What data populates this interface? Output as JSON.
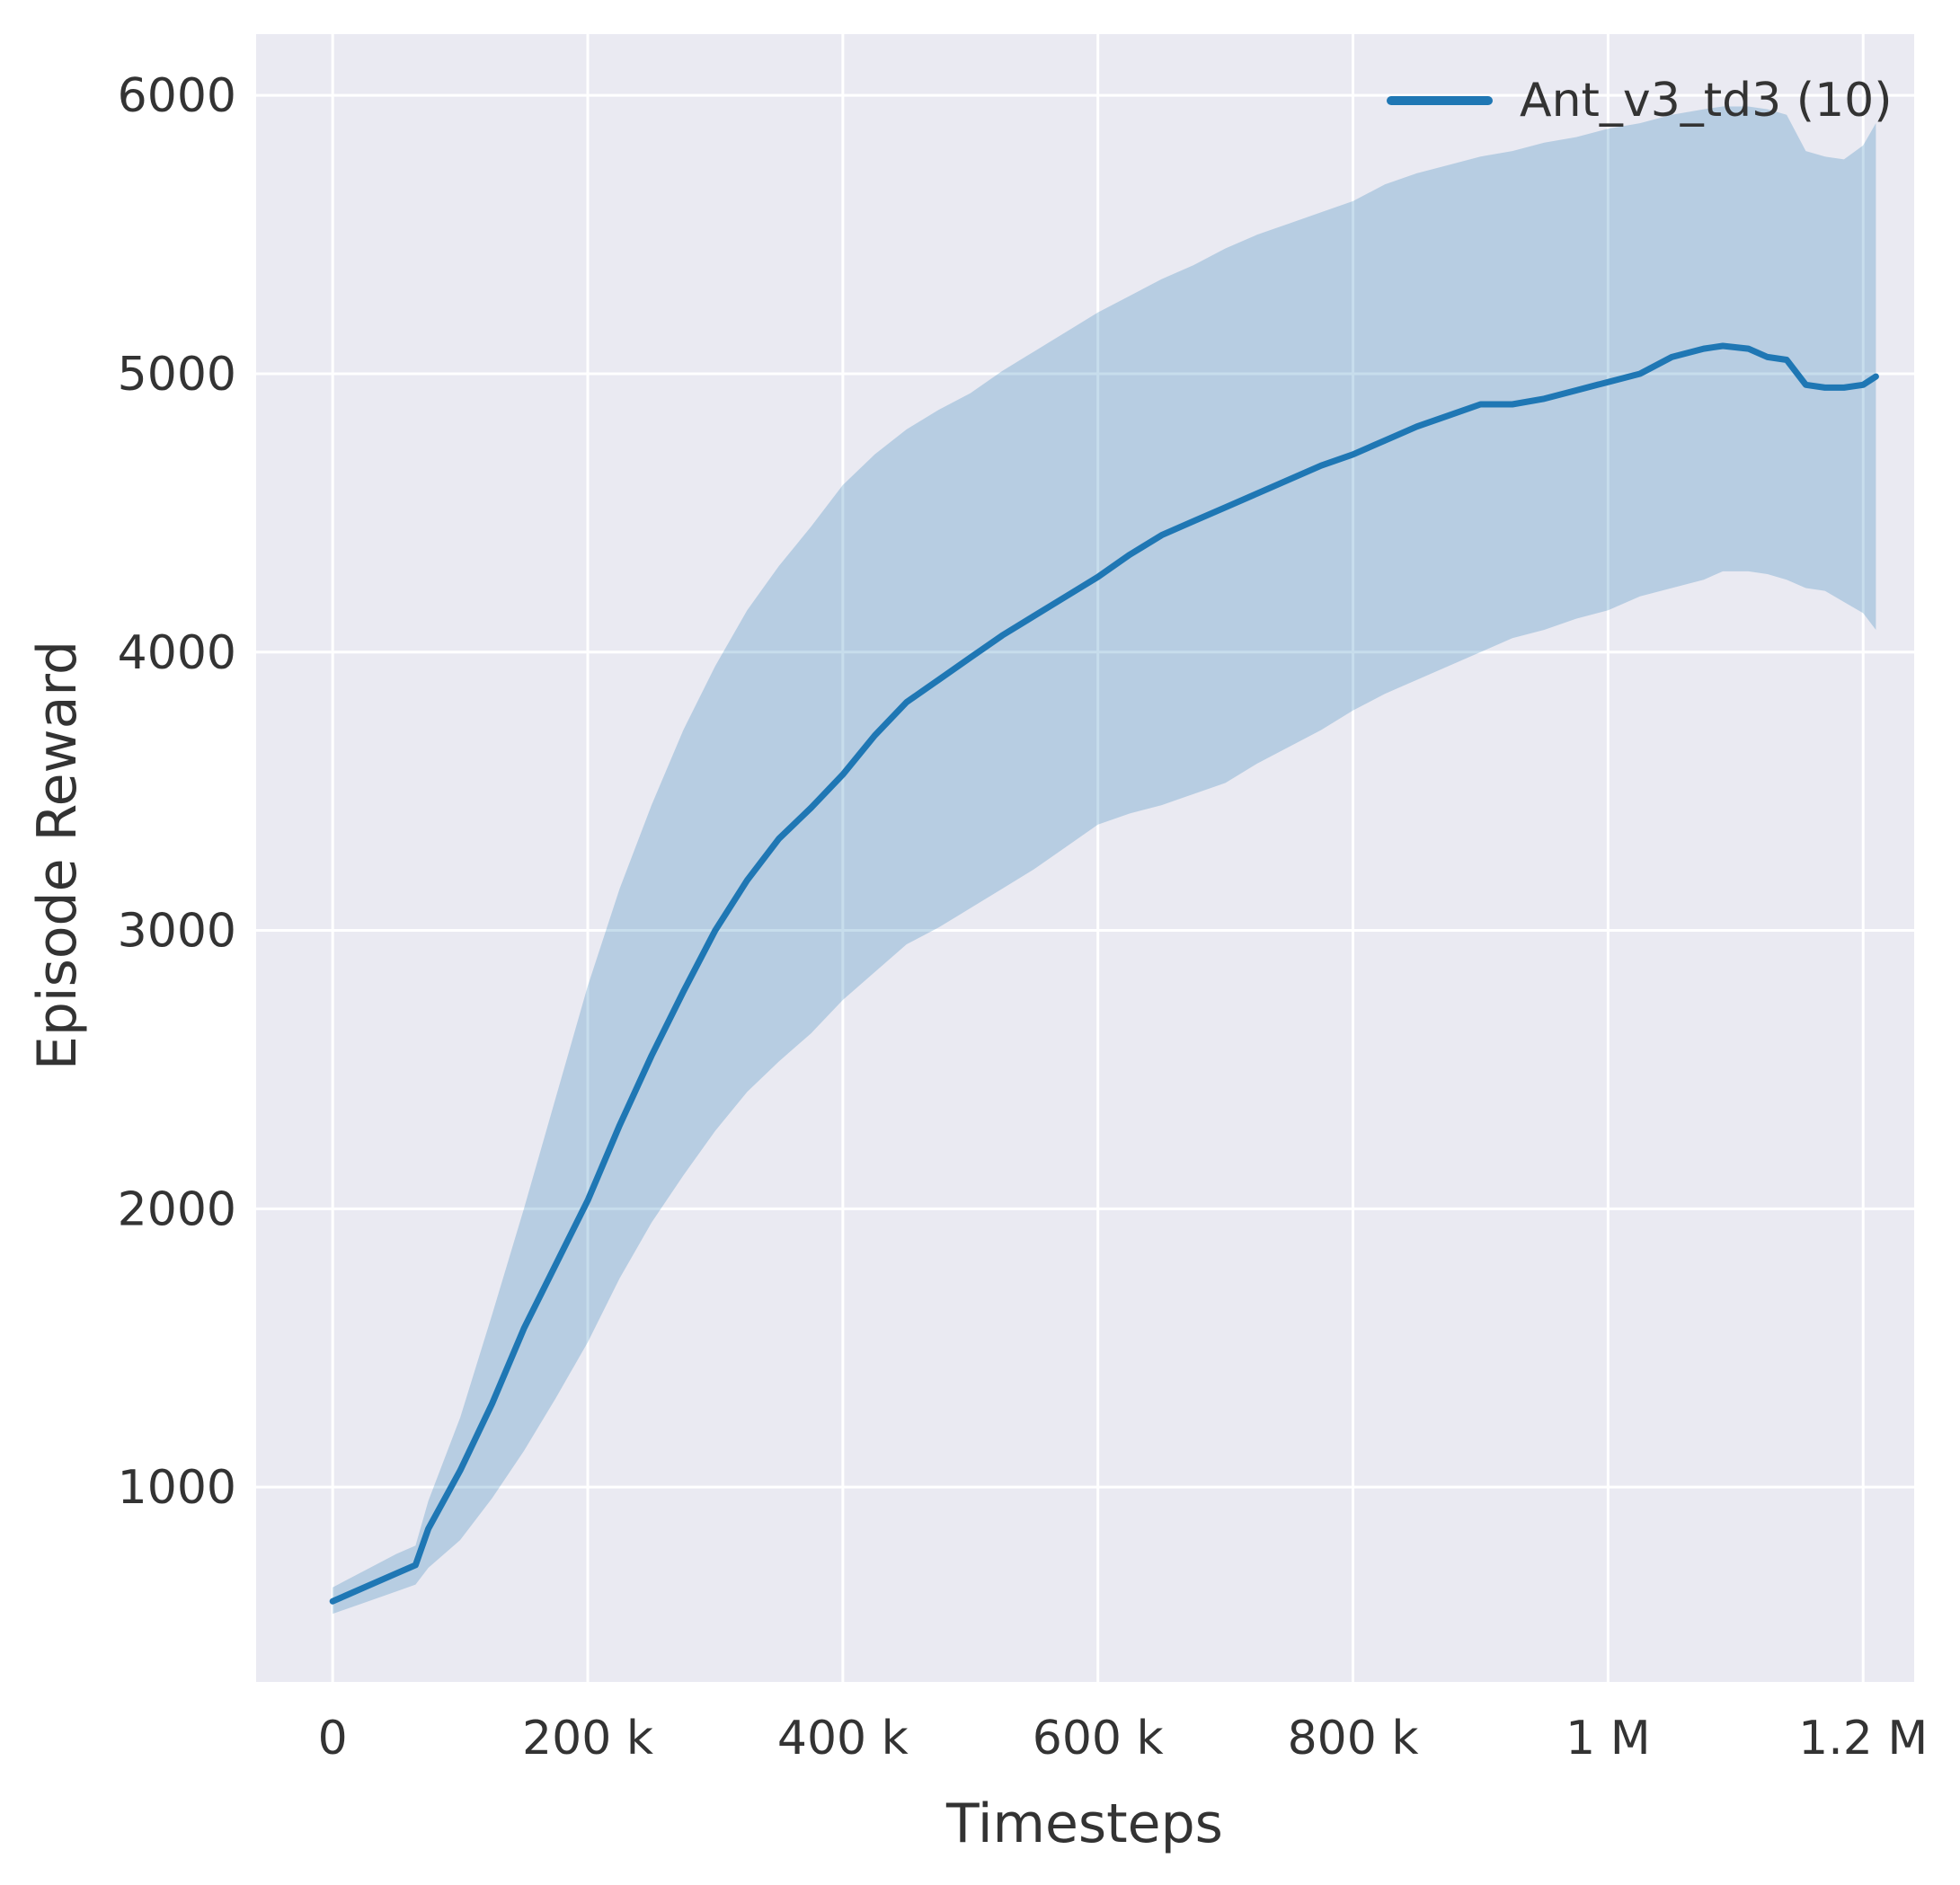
{
  "chart_data": {
    "type": "line",
    "title": "",
    "xlabel": "Timesteps",
    "ylabel": "Episode Reward",
    "grid": true,
    "background": "#eaeaf2",
    "gridline_color": "#ffffff",
    "text_color": "#333333",
    "xlim": [
      -60000,
      1240000
    ],
    "ylim": [
      300,
      6220
    ],
    "legend_position": "upper right",
    "legend": [
      {
        "label": "Ant_v3_td3 (10)",
        "color": "#1f77b4"
      }
    ],
    "xticks": [
      {
        "value": 0,
        "label": "0"
      },
      {
        "value": 200000,
        "label": "200 k"
      },
      {
        "value": 400000,
        "label": "400 k"
      },
      {
        "value": 600000,
        "label": "600 k"
      },
      {
        "value": 800000,
        "label": "800 k"
      },
      {
        "value": 1000000,
        "label": "1 M"
      },
      {
        "value": 1200000,
        "label": "1.2 M"
      }
    ],
    "yticks": [
      {
        "value": 1000,
        "label": "1000"
      },
      {
        "value": 2000,
        "label": "2000"
      },
      {
        "value": 3000,
        "label": "3000"
      },
      {
        "value": 4000,
        "label": "4000"
      },
      {
        "value": 5000,
        "label": "5000"
      },
      {
        "value": 6000,
        "label": "6000"
      }
    ],
    "series": [
      {
        "name": "Ant_v3_td3 (10)",
        "color": "#1f77b4",
        "band_color": "#1f77b4",
        "band_opacity": 0.25,
        "x": [
          0,
          25000,
          50000,
          65000,
          75000,
          100000,
          125000,
          150000,
          175000,
          200000,
          225000,
          250000,
          275000,
          300000,
          325000,
          350000,
          375000,
          400000,
          425000,
          450000,
          475000,
          500000,
          525000,
          550000,
          575000,
          600000,
          625000,
          650000,
          675000,
          700000,
          725000,
          750000,
          775000,
          800000,
          825000,
          850000,
          875000,
          900000,
          925000,
          950000,
          975000,
          1000000,
          1025000,
          1050000,
          1075000,
          1090000,
          1110000,
          1125000,
          1140000,
          1155000,
          1170000,
          1185000,
          1200000,
          1210000
        ],
        "mean": [
          590,
          640,
          690,
          720,
          850,
          1060,
          1300,
          1570,
          1800,
          2030,
          2300,
          2550,
          2780,
          3000,
          3180,
          3330,
          3440,
          3560,
          3700,
          3820,
          3900,
          3980,
          4060,
          4130,
          4200,
          4270,
          4350,
          4420,
          4470,
          4520,
          4570,
          4620,
          4670,
          4710,
          4760,
          4810,
          4850,
          4890,
          4890,
          4910,
          4940,
          4970,
          5000,
          5060,
          5090,
          5100,
          5090,
          5060,
          5050,
          4960,
          4950,
          4950,
          4960,
          4990
        ],
        "upper": [
          640,
          700,
          760,
          790,
          950,
          1250,
          1620,
          2000,
          2400,
          2800,
          3150,
          3450,
          3720,
          3950,
          4150,
          4310,
          4450,
          4600,
          4710,
          4800,
          4870,
          4930,
          5010,
          5080,
          5150,
          5220,
          5280,
          5340,
          5390,
          5450,
          5500,
          5540,
          5580,
          5620,
          5680,
          5720,
          5750,
          5780,
          5800,
          5830,
          5850,
          5880,
          5900,
          5930,
          5950,
          5960,
          5960,
          5950,
          5930,
          5800,
          5780,
          5770,
          5820,
          5900
        ],
        "lower": [
          545,
          585,
          625,
          650,
          710,
          810,
          960,
          1130,
          1320,
          1520,
          1750,
          1950,
          2120,
          2280,
          2420,
          2530,
          2630,
          2750,
          2850,
          2950,
          3010,
          3080,
          3150,
          3220,
          3300,
          3380,
          3420,
          3450,
          3490,
          3530,
          3600,
          3660,
          3720,
          3790,
          3850,
          3900,
          3950,
          4000,
          4050,
          4080,
          4120,
          4150,
          4200,
          4230,
          4260,
          4290,
          4290,
          4280,
          4260,
          4230,
          4220,
          4180,
          4140,
          4080
        ]
      }
    ]
  }
}
